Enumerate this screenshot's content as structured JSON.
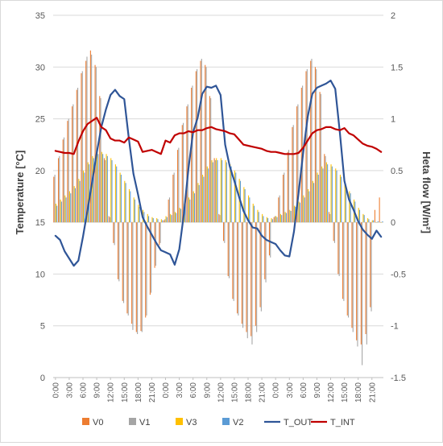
{
  "chart_data": {
    "type": "bar",
    "title": "",
    "ylabel_left": "Temperature [°C]",
    "ylabel_right": "Heta flow [W/m²]",
    "ylim_left": [
      0,
      35
    ],
    "ylim_right": [
      -1.5,
      2
    ],
    "yticks_left": [
      "0",
      "5",
      "10",
      "15",
      "20",
      "25",
      "30",
      "35"
    ],
    "yticks_right": [
      "-1.5",
      "-1",
      "-0.5",
      "0",
      "0.5",
      "1",
      "1.5",
      "2"
    ],
    "x_hours": [
      0,
      1,
      2,
      3,
      4,
      5,
      6,
      7,
      8,
      9,
      10,
      11,
      12,
      13,
      14,
      15,
      16,
      17,
      18,
      19,
      20,
      21,
      22,
      23,
      24,
      25,
      26,
      27,
      28,
      29,
      30,
      31,
      32,
      33,
      34,
      35,
      36,
      37,
      38,
      39,
      40,
      41,
      42,
      43,
      44,
      45,
      46,
      47,
      48,
      49,
      50,
      51,
      52,
      53,
      54,
      55,
      56,
      57,
      58,
      59,
      60,
      61,
      62,
      63,
      64,
      65,
      66,
      67,
      68,
      69,
      70,
      71
    ],
    "x_tick_labels": [
      "0:00",
      "3:00",
      "6:00",
      "9:00",
      "12:00",
      "15:00",
      "18:00",
      "21:00",
      "0:00",
      "3:00",
      "6:00",
      "9:00",
      "12:00",
      "15:00",
      "18:00",
      "21:00",
      "0:00",
      "3:00",
      "6:00",
      "9:00",
      "12:00",
      "15:00",
      "18:00",
      "21:00"
    ],
    "series": [
      {
        "name": "V0",
        "axis": "right",
        "kind": "bar",
        "color": "#ED7D31",
        "values": [
          0.44,
          0.62,
          0.8,
          0.98,
          1.12,
          1.28,
          1.44,
          1.56,
          1.66,
          1.52,
          1.22,
          0.62,
          0.06,
          -0.2,
          -0.55,
          -0.76,
          -0.88,
          -0.98,
          -1.06,
          -1.05,
          -0.92,
          -0.7,
          -0.44,
          -0.22,
          0.02,
          0.22,
          0.46,
          0.7,
          0.94,
          1.12,
          1.3,
          1.46,
          1.56,
          1.52,
          1.22,
          0.62,
          0.08,
          -0.18,
          -0.52,
          -0.74,
          -0.88,
          -0.98,
          -1.06,
          -1.1,
          -1.0,
          -0.82,
          -0.55,
          -0.32,
          0.05,
          0.24,
          0.46,
          0.68,
          0.92,
          1.12,
          1.3,
          1.46,
          1.56,
          1.5,
          1.26,
          0.66,
          0.1,
          -0.18,
          -0.5,
          -0.74,
          -0.9,
          -1.02,
          -1.14,
          -1.18,
          -1.08,
          -0.82,
          0.12,
          0.24
        ]
      },
      {
        "name": "V1",
        "axis": "right",
        "kind": "bar",
        "color": "#A5A5A5",
        "values": [
          0.46,
          0.64,
          0.82,
          1.0,
          1.14,
          1.3,
          1.46,
          1.6,
          1.62,
          1.5,
          1.2,
          0.6,
          0.05,
          -0.22,
          -0.57,
          -0.78,
          -0.9,
          -1.04,
          -1.08,
          -1.06,
          -0.9,
          -0.68,
          -0.42,
          -0.2,
          0.03,
          0.24,
          0.48,
          0.72,
          0.96,
          1.14,
          1.32,
          1.48,
          1.58,
          1.5,
          1.2,
          0.6,
          0.07,
          -0.2,
          -0.54,
          -0.76,
          -0.9,
          -1.02,
          -1.12,
          -1.18,
          -1.06,
          -0.86,
          -0.58,
          -0.34,
          0.06,
          0.26,
          0.48,
          0.7,
          0.94,
          1.14,
          1.32,
          1.48,
          1.58,
          1.48,
          1.24,
          0.64,
          0.08,
          -0.2,
          -0.52,
          -0.76,
          -0.92,
          -1.06,
          -1.2,
          -1.38,
          -1.18,
          -0.86,
          0.0,
          0.0
        ]
      },
      {
        "name": "V3",
        "axis": "right",
        "kind": "bar",
        "color": "#FFC000",
        "values": [
          0.18,
          0.22,
          0.26,
          0.3,
          0.35,
          0.42,
          0.5,
          0.58,
          0.64,
          0.68,
          0.68,
          0.66,
          0.62,
          0.56,
          0.48,
          0.4,
          0.32,
          0.24,
          0.17,
          0.12,
          0.08,
          0.05,
          0.04,
          0.03,
          0.06,
          0.08,
          0.1,
          0.14,
          0.18,
          0.24,
          0.3,
          0.38,
          0.46,
          0.54,
          0.6,
          0.62,
          0.62,
          0.6,
          0.56,
          0.5,
          0.42,
          0.34,
          0.26,
          0.18,
          0.12,
          0.08,
          0.05,
          0.04,
          0.06,
          0.08,
          0.1,
          0.12,
          0.16,
          0.2,
          0.26,
          0.32,
          0.4,
          0.48,
          0.54,
          0.58,
          0.56,
          0.52,
          0.46,
          0.38,
          0.3,
          0.22,
          0.14,
          0.08,
          0.04,
          0.02,
          0.0,
          0.0
        ]
      },
      {
        "name": "V2",
        "axis": "right",
        "kind": "bar",
        "color": "#5B9BD5",
        "values": [
          0.16,
          0.2,
          0.24,
          0.28,
          0.33,
          0.4,
          0.48,
          0.56,
          0.62,
          0.66,
          0.66,
          0.64,
          0.6,
          0.54,
          0.46,
          0.38,
          0.3,
          0.22,
          0.15,
          0.1,
          0.06,
          0.04,
          0.03,
          0.02,
          0.05,
          0.07,
          0.09,
          0.13,
          0.17,
          0.22,
          0.28,
          0.36,
          0.44,
          0.52,
          0.58,
          0.6,
          0.6,
          0.58,
          0.54,
          0.48,
          0.4,
          0.32,
          0.24,
          0.16,
          0.1,
          0.06,
          0.04,
          0.03,
          0.05,
          0.07,
          0.09,
          0.11,
          0.15,
          0.19,
          0.24,
          0.3,
          0.38,
          0.46,
          0.52,
          0.56,
          0.54,
          0.5,
          0.44,
          0.36,
          0.28,
          0.2,
          0.12,
          0.07,
          0.03,
          0.02,
          0.01,
          0.01
        ]
      },
      {
        "name": "T_OUT",
        "axis": "left",
        "kind": "line",
        "color": "#2F5597",
        "values": [
          13.7,
          13.3,
          12.2,
          11.5,
          10.8,
          11.3,
          13.6,
          16.2,
          18.9,
          21.7,
          24.2,
          25.9,
          27.3,
          27.8,
          27.2,
          26.9,
          23.1,
          19.7,
          17.7,
          15.5,
          14.6,
          13.8,
          13.0,
          12.3,
          12.1,
          11.9,
          10.9,
          12.4,
          15.8,
          20.2,
          23.7,
          25.1,
          27.4,
          28.1,
          28.0,
          28.2,
          27.3,
          22.5,
          20.4,
          19.0,
          17.5,
          16.1,
          15.2,
          14.5,
          14.4,
          13.7,
          13.3,
          13.1,
          12.9,
          12.3,
          11.8,
          11.7,
          14.1,
          17.8,
          21.7,
          25.2,
          27.4,
          28.0,
          28.2,
          28.4,
          28.7,
          27.9,
          23.7,
          19.0,
          17.2,
          16.2,
          15.1,
          14.3,
          13.8,
          13.4,
          14.2,
          13.6
        ]
      },
      {
        "name": "T_INT",
        "axis": "left",
        "kind": "line",
        "color": "#C00000",
        "values": [
          21.9,
          21.8,
          21.7,
          21.7,
          21.6,
          22.8,
          23.8,
          24.5,
          24.8,
          25.1,
          24.2,
          23.9,
          23.1,
          22.9,
          22.9,
          22.7,
          23.2,
          23.0,
          22.8,
          21.8,
          21.9,
          22.0,
          21.8,
          21.6,
          22.9,
          22.7,
          23.4,
          23.6,
          23.6,
          23.8,
          23.7,
          23.9,
          23.9,
          24.1,
          24.2,
          24.0,
          23.9,
          23.8,
          23.6,
          23.5,
          23.0,
          22.5,
          22.4,
          22.3,
          22.2,
          22.1,
          21.9,
          21.8,
          21.8,
          21.7,
          21.6,
          21.6,
          21.6,
          21.7,
          22.2,
          22.9,
          23.6,
          23.9,
          24.0,
          24.2,
          24.2,
          24.0,
          23.9,
          24.1,
          23.6,
          23.4,
          23.0,
          22.6,
          22.4,
          22.3,
          22.1,
          21.8
        ]
      }
    ],
    "legend": [
      "V0",
      "V1",
      "V3",
      "V2",
      "T_OUT",
      "T_INT"
    ],
    "legend_position": "bottom",
    "grid": true
  }
}
